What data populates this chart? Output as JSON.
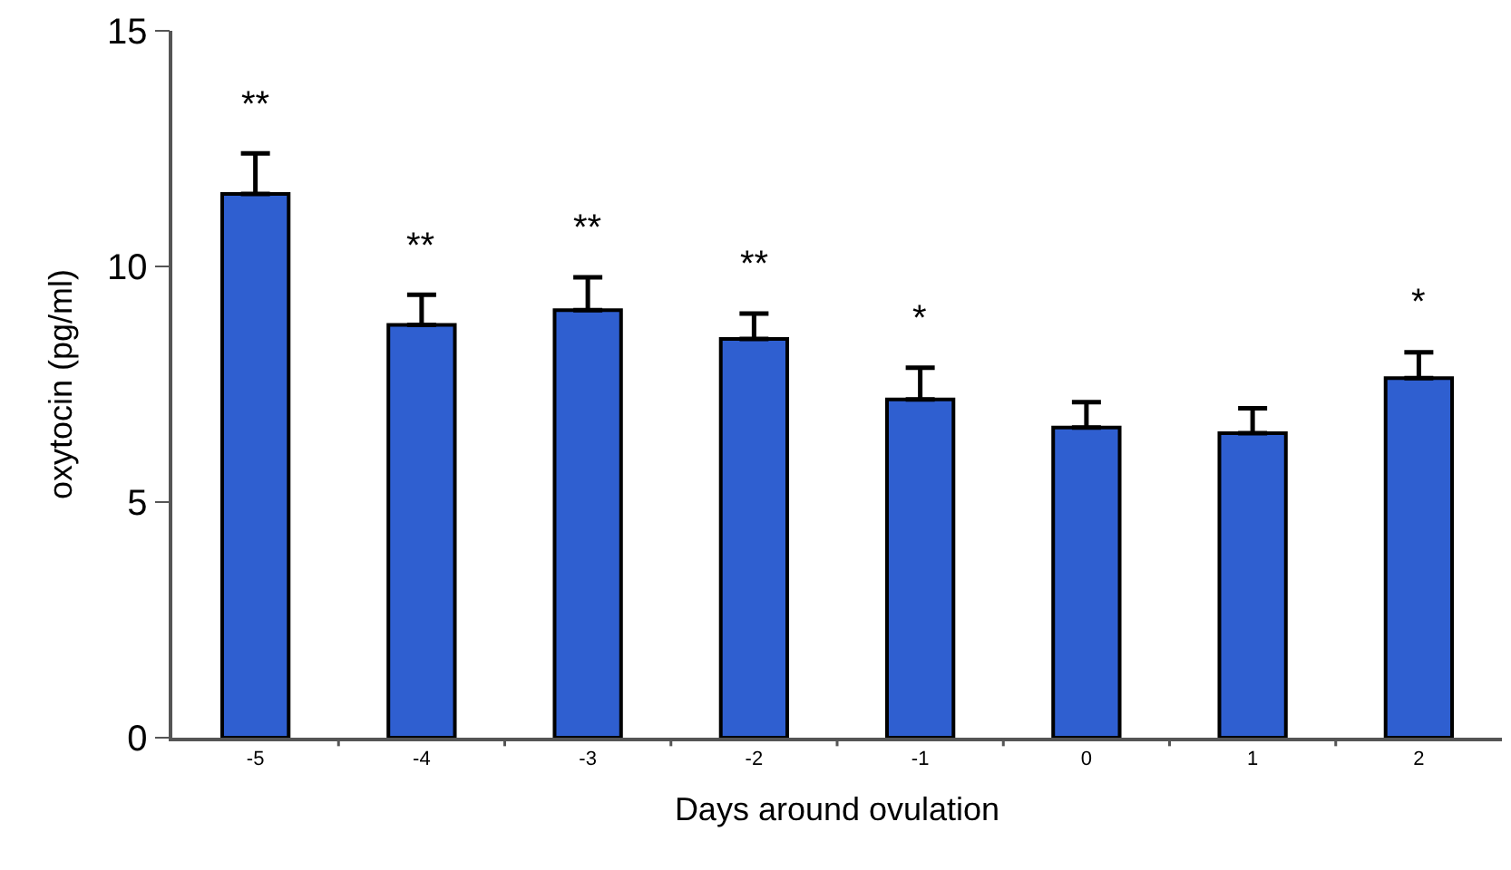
{
  "chart_data": {
    "type": "bar",
    "xlabel": "Days around ovulation",
    "ylabel": "oxytocin (pg/ml)",
    "categories": [
      "-5",
      "-4",
      "-3",
      "-2",
      "-1",
      "0",
      "1",
      "2"
    ],
    "values": [
      11.54,
      8.76,
      9.07,
      8.46,
      7.18,
      6.58,
      6.46,
      7.63
    ],
    "errors": [
      [
        11.54,
        12.4
      ],
      [
        8.76,
        9.4
      ],
      [
        9.07,
        9.77
      ],
      [
        8.46,
        9.0
      ],
      [
        7.18,
        7.85
      ],
      [
        6.58,
        7.12
      ],
      [
        6.46,
        6.99
      ],
      [
        7.63,
        8.18
      ]
    ],
    "color": "#2f5fd0",
    "ylim": [
      0,
      15
    ],
    "yticks": [
      0,
      5,
      10,
      15
    ],
    "grid": false,
    "legend": false,
    "annotations": [
      {
        "text": "**",
        "x": "-5",
        "y": 12.4
      },
      {
        "text": "**",
        "x": "-4",
        "y": 9.4
      },
      {
        "text": "**",
        "x": "-3",
        "y": 9.77
      },
      {
        "text": "**",
        "x": "-2",
        "y": 9.0
      },
      {
        "text": "*",
        "x": "-1",
        "y": 7.85
      },
      {
        "text": "*",
        "x": "2",
        "y": 8.18
      }
    ]
  }
}
